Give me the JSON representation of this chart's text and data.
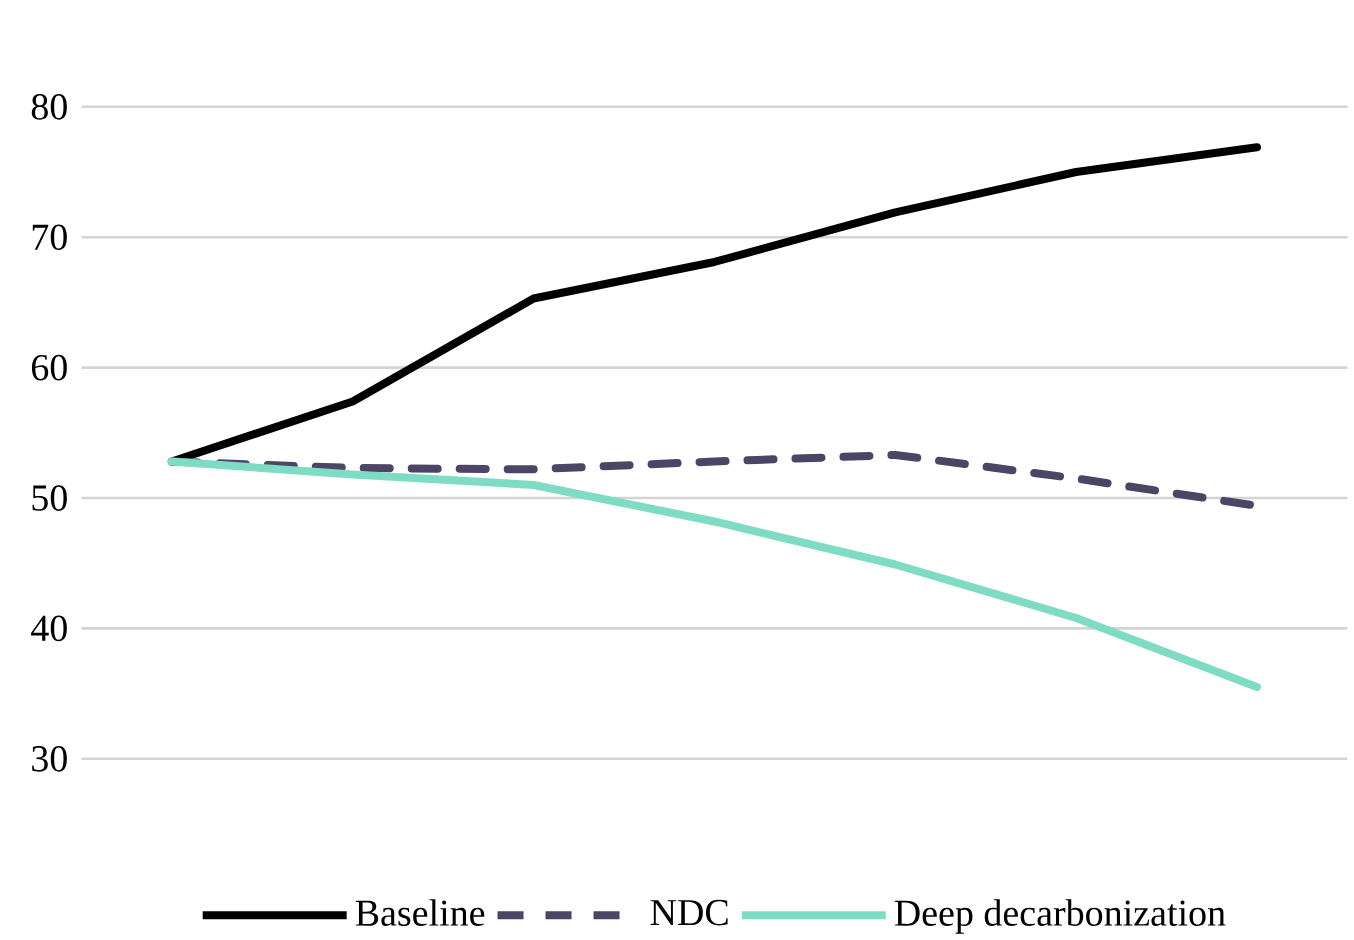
{
  "chart_data": {
    "type": "line",
    "categories": [
      null,
      null,
      null,
      null,
      null,
      null,
      null
    ],
    "series": [
      {
        "name": "Baseline",
        "color": "#000000",
        "line_style": "solid",
        "values": [
          52.8,
          57.4,
          65.3,
          68.1,
          71.9,
          75.0,
          76.9
        ]
      },
      {
        "name": "NDC",
        "color": "#4d4565",
        "line_style": "dashed",
        "values": [
          52.8,
          52.3,
          52.2,
          52.8,
          53.3,
          51.5,
          49.4
        ]
      },
      {
        "name": "Deep decarbonization",
        "color": "#7fdcc4",
        "line_style": "solid",
        "values": [
          52.8,
          51.8,
          51.0,
          48.2,
          44.9,
          40.8,
          35.5
        ]
      }
    ],
    "ylim": [
      30,
      80
    ],
    "yticks": [
      30,
      40,
      50,
      60,
      70,
      80
    ],
    "grid": "y",
    "legend": "bottom",
    "marker": "none",
    "tick_labels": "y"
  }
}
